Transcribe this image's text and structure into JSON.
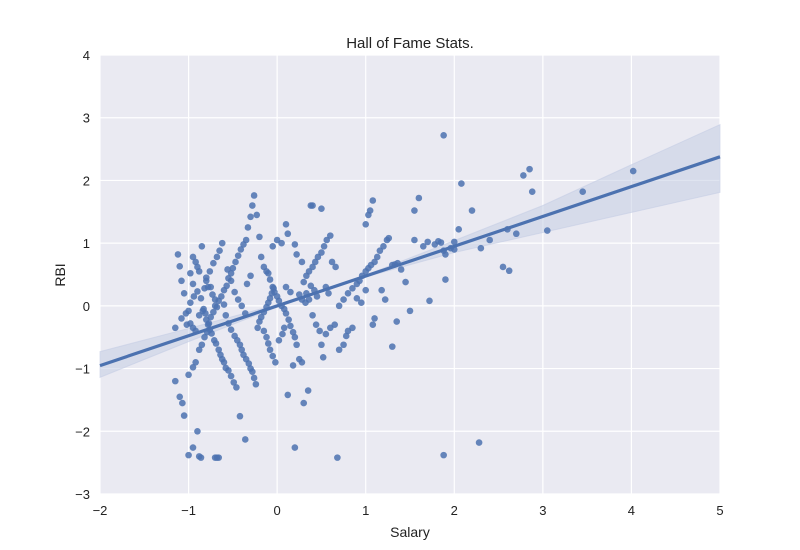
{
  "chart_data": {
    "type": "scatter",
    "title": "Hall of Fame Stats.",
    "xlabel": "Salary",
    "ylabel": "RBI",
    "xlim": [
      -2,
      5
    ],
    "ylim": [
      -3,
      4
    ],
    "xticks": [
      "−2",
      "−1",
      "0",
      "1",
      "2",
      "3",
      "4",
      "5"
    ],
    "yticks": [
      "−3",
      "−2",
      "−1",
      "0",
      "1",
      "2",
      "3",
      "4"
    ],
    "grid": true,
    "colors": {
      "background": "#eaeaf2",
      "grid": "#ffffff",
      "points": "#4c72b0",
      "line": "#4c72b0",
      "band": "#c5cde4"
    },
    "regression": {
      "slope": 0.4756,
      "intercept": -0.0012
    },
    "confidence_band": {
      "x": [
        -2,
        -1,
        0,
        1,
        2,
        3,
        4,
        5
      ],
      "lower": [
        -1.14,
        -0.57,
        -0.02,
        0.46,
        0.85,
        1.17,
        1.49,
        1.81
      ],
      "upper": [
        -0.73,
        -0.36,
        0.02,
        0.49,
        1.04,
        1.6,
        2.25,
        2.89
      ]
    },
    "points": [
      [
        -1.12,
        0.82
      ],
      [
        -1.1,
        0.63
      ],
      [
        -1.08,
        0.4
      ],
      [
        -1.05,
        0.2
      ],
      [
        -1.03,
        -0.12
      ],
      [
        -1.0,
        -0.08
      ],
      [
        -0.98,
        0.52
      ],
      [
        -0.95,
        0.78
      ],
      [
        -0.92,
        0.7
      ],
      [
        -0.9,
        0.62
      ],
      [
        -0.88,
        0.55
      ],
      [
        -0.85,
        0.95
      ],
      [
        -0.8,
        0.4
      ],
      [
        -0.78,
        0.3
      ],
      [
        -0.75,
        0.3
      ],
      [
        -0.73,
        0.18
      ],
      [
        -0.7,
        0.1
      ],
      [
        -0.68,
        -0.02
      ],
      [
        -0.95,
        0.35
      ],
      [
        -0.9,
        0.23
      ],
      [
        -0.86,
        0.12
      ],
      [
        -0.83,
        -0.05
      ],
      [
        -0.81,
        -0.12
      ],
      [
        -0.8,
        -0.22
      ],
      [
        -0.78,
        -0.3
      ],
      [
        -0.76,
        -0.38
      ],
      [
        -0.74,
        -0.44
      ],
      [
        -0.71,
        -0.55
      ],
      [
        -0.69,
        -0.6
      ],
      [
        -0.66,
        -0.7
      ],
      [
        -0.64,
        -0.78
      ],
      [
        -0.62,
        -0.85
      ],
      [
        -0.6,
        -0.9
      ],
      [
        -0.58,
        -0.99
      ],
      [
        -0.55,
        -1.03
      ],
      [
        -0.52,
        -1.12
      ],
      [
        -0.49,
        -1.22
      ],
      [
        -0.46,
        -1.3
      ],
      [
        -0.42,
        -1.76
      ],
      [
        -0.36,
        -2.13
      ],
      [
        -0.9,
        -2.0
      ],
      [
        -0.95,
        -2.26
      ],
      [
        -1.0,
        -2.38
      ],
      [
        -0.88,
        -2.4
      ],
      [
        -0.86,
        -2.42
      ],
      [
        -0.7,
        -2.42
      ],
      [
        -0.68,
        -2.42
      ],
      [
        -0.66,
        -2.42
      ],
      [
        -1.05,
        -1.75
      ],
      [
        -1.07,
        -1.55
      ],
      [
        -1.1,
        -1.45
      ],
      [
        -1.15,
        -1.2
      ],
      [
        -1.0,
        -1.1
      ],
      [
        -0.95,
        -0.98
      ],
      [
        -0.92,
        -0.9
      ],
      [
        -0.88,
        -0.7
      ],
      [
        -0.85,
        -0.62
      ],
      [
        -0.82,
        -0.5
      ],
      [
        -0.79,
        -0.42
      ],
      [
        -0.77,
        -0.28
      ],
      [
        -0.75,
        -0.18
      ],
      [
        -0.72,
        -0.1
      ],
      [
        -0.7,
        0.0
      ],
      [
        -0.66,
        0.08
      ],
      [
        -0.63,
        0.15
      ],
      [
        -0.6,
        0.25
      ],
      [
        -0.57,
        0.32
      ],
      [
        -0.55,
        0.44
      ],
      [
        -0.52,
        0.52
      ],
      [
        -0.5,
        0.6
      ],
      [
        -0.47,
        0.7
      ],
      [
        -0.44,
        0.8
      ],
      [
        -0.41,
        0.9
      ],
      [
        -0.38,
        0.98
      ],
      [
        -0.35,
        1.05
      ],
      [
        -0.33,
        1.25
      ],
      [
        -0.3,
        1.42
      ],
      [
        -0.28,
        1.6
      ],
      [
        -0.26,
        1.76
      ],
      [
        -0.23,
        1.45
      ],
      [
        -0.2,
        1.1
      ],
      [
        -0.18,
        0.78
      ],
      [
        -0.15,
        0.62
      ],
      [
        -0.12,
        0.55
      ],
      [
        -0.1,
        0.52
      ],
      [
        -0.08,
        0.42
      ],
      [
        -0.05,
        0.3
      ],
      [
        -0.03,
        0.22
      ],
      [
        0.0,
        0.15
      ],
      [
        0.02,
        0.08
      ],
      [
        0.05,
        0.0
      ],
      [
        0.08,
        -0.05
      ],
      [
        0.1,
        -0.12
      ],
      [
        0.13,
        -0.22
      ],
      [
        0.15,
        -0.32
      ],
      [
        0.18,
        -0.42
      ],
      [
        0.2,
        -0.5
      ],
      [
        0.22,
        -0.62
      ],
      [
        0.25,
        -0.85
      ],
      [
        0.28,
        -0.9
      ],
      [
        0.3,
        0.38
      ],
      [
        0.33,
        0.48
      ],
      [
        0.36,
        0.55
      ],
      [
        0.4,
        0.62
      ],
      [
        0.43,
        0.7
      ],
      [
        0.46,
        0.78
      ],
      [
        0.5,
        0.85
      ],
      [
        0.53,
        0.95
      ],
      [
        0.56,
        1.05
      ],
      [
        0.6,
        1.12
      ],
      [
        0.38,
        1.6
      ],
      [
        0.4,
        1.6
      ],
      [
        0.5,
        1.55
      ],
      [
        0.1,
        1.3
      ],
      [
        0.12,
        1.15
      ],
      [
        0.2,
        0.98
      ],
      [
        0.22,
        0.82
      ],
      [
        0.28,
        0.7
      ],
      [
        0.33,
        0.2
      ],
      [
        0.36,
        0.1
      ],
      [
        0.4,
        -0.15
      ],
      [
        0.44,
        -0.3
      ],
      [
        0.48,
        -0.4
      ],
      [
        0.5,
        -0.62
      ],
      [
        0.52,
        -0.82
      ],
      [
        0.55,
        -0.45
      ],
      [
        0.6,
        -0.35
      ],
      [
        0.65,
        -0.3
      ],
      [
        0.7,
        0.0
      ],
      [
        0.75,
        0.1
      ],
      [
        0.8,
        0.2
      ],
      [
        0.85,
        0.28
      ],
      [
        0.9,
        0.35
      ],
      [
        0.93,
        0.4
      ],
      [
        0.96,
        0.48
      ],
      [
        1.0,
        0.55
      ],
      [
        1.03,
        0.6
      ],
      [
        1.06,
        0.65
      ],
      [
        1.1,
        0.7
      ],
      [
        1.13,
        0.78
      ],
      [
        1.16,
        0.88
      ],
      [
        1.2,
        0.95
      ],
      [
        1.24,
        1.05
      ],
      [
        1.26,
        1.08
      ],
      [
        1.3,
        0.65
      ],
      [
        1.33,
        0.66
      ],
      [
        1.36,
        0.68
      ],
      [
        1.0,
        1.3
      ],
      [
        1.03,
        1.45
      ],
      [
        1.05,
        1.52
      ],
      [
        1.08,
        1.68
      ],
      [
        1.6,
        1.72
      ],
      [
        1.55,
        1.52
      ],
      [
        1.7,
        1.02
      ],
      [
        1.78,
        0.98
      ],
      [
        1.82,
        1.03
      ],
      [
        1.85,
        1.01
      ],
      [
        1.88,
        0.88
      ],
      [
        1.9,
        0.82
      ],
      [
        1.96,
        0.92
      ],
      [
        2.0,
        0.9
      ],
      [
        2.05,
        1.22
      ],
      [
        2.08,
        1.95
      ],
      [
        2.2,
        1.52
      ],
      [
        2.3,
        0.92
      ],
      [
        1.88,
        2.72
      ],
      [
        1.72,
        0.08
      ],
      [
        1.9,
        0.42
      ],
      [
        1.45,
        0.38
      ],
      [
        1.5,
        -0.08
      ],
      [
        1.35,
        -0.25
      ],
      [
        1.3,
        -0.65
      ],
      [
        1.1,
        -0.2
      ],
      [
        1.08,
        -0.3
      ],
      [
        1.0,
        0.25
      ],
      [
        0.95,
        0.05
      ],
      [
        0.9,
        0.12
      ],
      [
        0.85,
        -0.35
      ],
      [
        0.8,
        -0.4
      ],
      [
        0.78,
        -0.48
      ],
      [
        0.75,
        -0.62
      ],
      [
        0.7,
        -0.7
      ],
      [
        0.68,
        -2.42
      ],
      [
        0.2,
        -2.26
      ],
      [
        0.12,
        -1.42
      ],
      [
        0.3,
        -1.55
      ],
      [
        0.35,
        -1.35
      ],
      [
        0.18,
        -0.95
      ],
      [
        0.05,
        1.0
      ],
      [
        0.0,
        1.05
      ],
      [
        -0.05,
        0.95
      ],
      [
        2.55,
        0.62
      ],
      [
        2.62,
        0.56
      ],
      [
        2.6,
        1.22
      ],
      [
        2.78,
        2.08
      ],
      [
        2.85,
        2.18
      ],
      [
        2.88,
        1.82
      ],
      [
        3.05,
        1.2
      ],
      [
        3.45,
        1.82
      ],
      [
        4.02,
        2.15
      ],
      [
        1.88,
        -2.38
      ],
      [
        2.28,
        -2.18
      ],
      [
        -0.98,
        -0.28
      ],
      [
        -0.95,
        -0.35
      ],
      [
        -0.92,
        -0.4
      ],
      [
        -0.88,
        -0.15
      ],
      [
        -0.84,
        -0.08
      ],
      [
        -0.6,
        0.02
      ],
      [
        -0.58,
        -0.15
      ],
      [
        -0.55,
        -0.28
      ],
      [
        -0.52,
        -0.38
      ],
      [
        -0.48,
        -0.48
      ],
      [
        -0.45,
        -0.55
      ],
      [
        -0.42,
        -0.62
      ],
      [
        -0.4,
        -0.7
      ],
      [
        -0.38,
        -0.78
      ],
      [
        -0.35,
        -0.85
      ],
      [
        -0.32,
        -0.92
      ],
      [
        -0.3,
        -1.0
      ],
      [
        -0.28,
        -1.05
      ],
      [
        -0.26,
        -1.15
      ],
      [
        -0.24,
        -1.25
      ],
      [
        -0.22,
        -0.35
      ],
      [
        -0.2,
        -0.25
      ],
      [
        -0.18,
        -0.18
      ],
      [
        -0.15,
        -0.1
      ],
      [
        -0.12,
        -0.02
      ],
      [
        -0.1,
        0.05
      ],
      [
        -0.08,
        0.12
      ],
      [
        -0.06,
        0.2
      ],
      [
        -0.04,
        0.28
      ],
      [
        -0.15,
        -0.4
      ],
      [
        -0.12,
        -0.5
      ],
      [
        -0.1,
        -0.6
      ],
      [
        -0.08,
        -0.7
      ],
      [
        -0.05,
        -0.8
      ],
      [
        -0.02,
        -0.9
      ],
      [
        0.02,
        -0.55
      ],
      [
        0.06,
        -0.45
      ],
      [
        0.08,
        -0.35
      ],
      [
        -1.15,
        -0.35
      ],
      [
        -1.08,
        -0.2
      ],
      [
        -1.02,
        -0.3
      ],
      [
        -0.98,
        0.05
      ],
      [
        -0.94,
        0.15
      ],
      [
        -0.82,
        0.28
      ],
      [
        -0.8,
        0.45
      ],
      [
        -0.76,
        0.55
      ],
      [
        -0.72,
        0.68
      ],
      [
        -0.68,
        0.78
      ],
      [
        -0.65,
        0.88
      ],
      [
        -0.62,
        1.0
      ],
      [
        -0.56,
        0.58
      ],
      [
        -0.52,
        0.4
      ],
      [
        -0.48,
        0.22
      ],
      [
        -0.44,
        0.1
      ],
      [
        -0.4,
        0.0
      ],
      [
        -0.36,
        -0.12
      ],
      [
        -0.34,
        0.35
      ],
      [
        -0.3,
        0.48
      ],
      [
        1.18,
        0.25
      ],
      [
        1.22,
        0.1
      ],
      [
        1.4,
        0.58
      ],
      [
        0.62,
        0.7
      ],
      [
        0.66,
        0.62
      ],
      [
        0.55,
        0.3
      ],
      [
        0.58,
        0.2
      ],
      [
        0.45,
        0.15
      ],
      [
        0.42,
        0.25
      ],
      [
        0.38,
        0.32
      ],
      [
        0.25,
        0.18
      ],
      [
        0.28,
        0.1
      ],
      [
        0.32,
        0.05
      ],
      [
        0.15,
        0.22
      ],
      [
        0.1,
        0.3
      ],
      [
        1.55,
        1.05
      ],
      [
        1.65,
        0.95
      ],
      [
        2.0,
        1.02
      ],
      [
        2.4,
        1.05
      ],
      [
        2.7,
        1.15
      ]
    ]
  }
}
